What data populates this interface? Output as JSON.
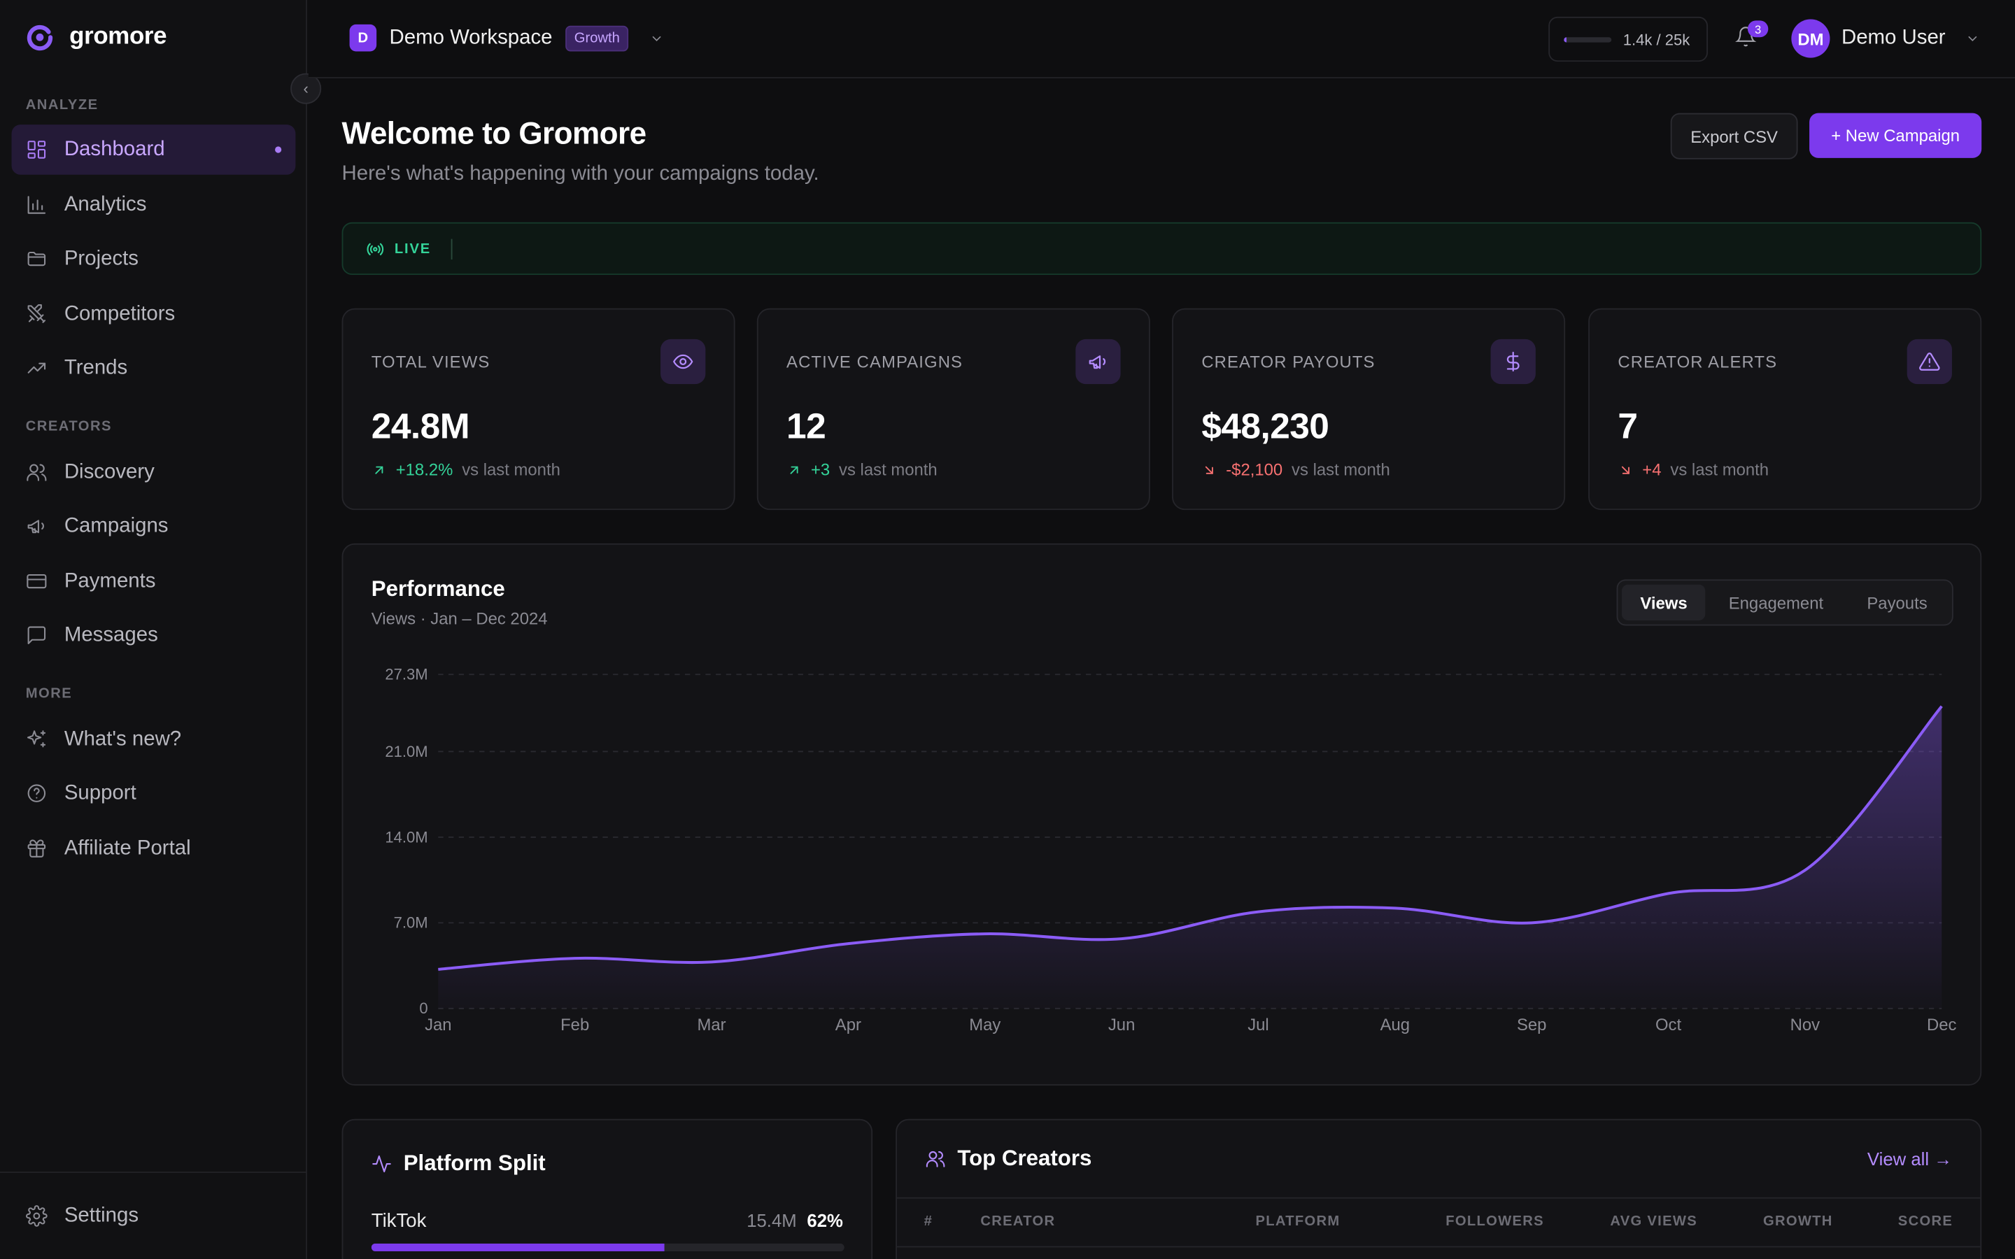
{
  "brand": {
    "name": "gromore"
  },
  "sidebar": {
    "sections": {
      "analyze": "ANALYZE",
      "creators": "CREATORS",
      "more": "MORE"
    },
    "items": [
      {
        "label": "Dashboard"
      },
      {
        "label": "Analytics"
      },
      {
        "label": "Projects"
      },
      {
        "label": "Competitors"
      },
      {
        "label": "Trends"
      },
      {
        "label": "Discovery"
      },
      {
        "label": "Campaigns"
      },
      {
        "label": "Payments"
      },
      {
        "label": "Messages"
      },
      {
        "label": "What's new?"
      },
      {
        "label": "Support"
      },
      {
        "label": "Affiliate Portal"
      }
    ],
    "settings": "Settings"
  },
  "topbar": {
    "ws_initial": "D",
    "workspace": "Demo Workspace",
    "plan": "Growth",
    "quota_text": "1.4k / 25k",
    "quota_fraction": 0.056,
    "notifications": "3",
    "user_initials": "DM",
    "user_name": "Demo User"
  },
  "header": {
    "title": "Welcome to Gromore",
    "subtitle": "Here's what's happening with your campaigns today.",
    "export": "Export CSV",
    "new": "+ New Campaign"
  },
  "live": {
    "label": "LIVE"
  },
  "stats": [
    {
      "title": "TOTAL VIEWS",
      "value": "24.8M",
      "delta": "+18.2%",
      "trend": "up",
      "vs": "vs last month",
      "icon": "eye-icon"
    },
    {
      "title": "ACTIVE CAMPAIGNS",
      "value": "12",
      "delta": "+3",
      "trend": "up",
      "vs": "vs last month",
      "icon": "megaphone-icon"
    },
    {
      "title": "CREATOR PAYOUTS",
      "value": "$48,230",
      "delta": "-$2,100",
      "trend": "down",
      "vs": "vs last month",
      "icon": "dollar-icon"
    },
    {
      "title": "CREATOR ALERTS",
      "value": "7",
      "delta": "+4",
      "trend": "down",
      "vs": "vs last month",
      "icon": "alert-triangle-icon"
    }
  ],
  "performance": {
    "title": "Performance",
    "subtitle": "Views · Jan – Dec 2024",
    "tabs": [
      "Views",
      "Engagement",
      "Payouts"
    ],
    "active_tab": "Views"
  },
  "chart_data": {
    "type": "area",
    "categories": [
      "Jan",
      "Feb",
      "Mar",
      "Apr",
      "May",
      "Jun",
      "Jul",
      "Aug",
      "Sep",
      "Oct",
      "Nov",
      "Dec"
    ],
    "series": [
      {
        "values": [
          3.2,
          4.1,
          3.8,
          5.3,
          6.1,
          5.7,
          7.9,
          8.2,
          7.0,
          9.4,
          11.3,
          24.7
        ]
      }
    ],
    "yticks": [
      "27.3M",
      "21.0M",
      "14.0M",
      "7.0M",
      "0"
    ],
    "ytick_values": [
      27.3,
      21.0,
      14.0,
      7.0,
      0
    ],
    "ylim": [
      0,
      27.3
    ],
    "color": "#8b5cf6"
  },
  "platform": {
    "title": "Platform Split",
    "items": [
      {
        "name": "TikTok",
        "views": "15.4M",
        "pct": "62%",
        "fraction": 0.62
      }
    ]
  },
  "creators": {
    "title": "Top Creators",
    "view_all": "View all →",
    "columns": [
      "#",
      "CREATOR",
      "PLATFORM",
      "FOLLOWERS",
      "AVG VIEWS",
      "GROWTH",
      "SCORE"
    ]
  }
}
